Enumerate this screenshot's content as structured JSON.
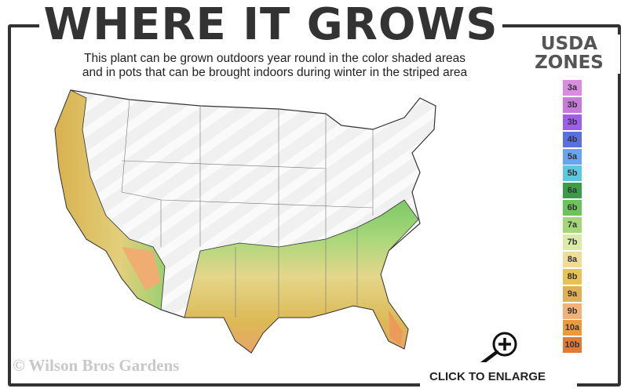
{
  "title": "WHERE IT GROWS",
  "subtitle_line1": "This plant can be grown outdoors year round in the color shaded areas",
  "subtitle_line2": "and in pots that can be brought indoors during winter in the striped area",
  "legend": {
    "title_line1": "USDA",
    "title_line2": "ZONES",
    "zones": [
      {
        "label": "3a",
        "color": "#d98ce0"
      },
      {
        "label": "3b",
        "color": "#c77ad9"
      },
      {
        "label": "3b",
        "color": "#9d5ee8"
      },
      {
        "label": "4b",
        "color": "#5a6fe0"
      },
      {
        "label": "5a",
        "color": "#6aa3f2"
      },
      {
        "label": "5b",
        "color": "#5fc6e0"
      },
      {
        "label": "6a",
        "color": "#3a9e48"
      },
      {
        "label": "6b",
        "color": "#6cc35c"
      },
      {
        "label": "7a",
        "color": "#a4d67a"
      },
      {
        "label": "7b",
        "color": "#dceaa8"
      },
      {
        "label": "8a",
        "color": "#efdb9a"
      },
      {
        "label": "8b",
        "color": "#e8c253"
      },
      {
        "label": "9a",
        "color": "#dfb055"
      },
      {
        "label": "9b",
        "color": "#f2b07a"
      },
      {
        "label": "10a",
        "color": "#eb9a3f"
      },
      {
        "label": "10b",
        "color": "#e07a35"
      }
    ]
  },
  "watermark": "© Wilson Bros Gardens",
  "enlarge_label": "CLICK TO ENLARGE",
  "icon": "zoom-in-magnifier-icon"
}
